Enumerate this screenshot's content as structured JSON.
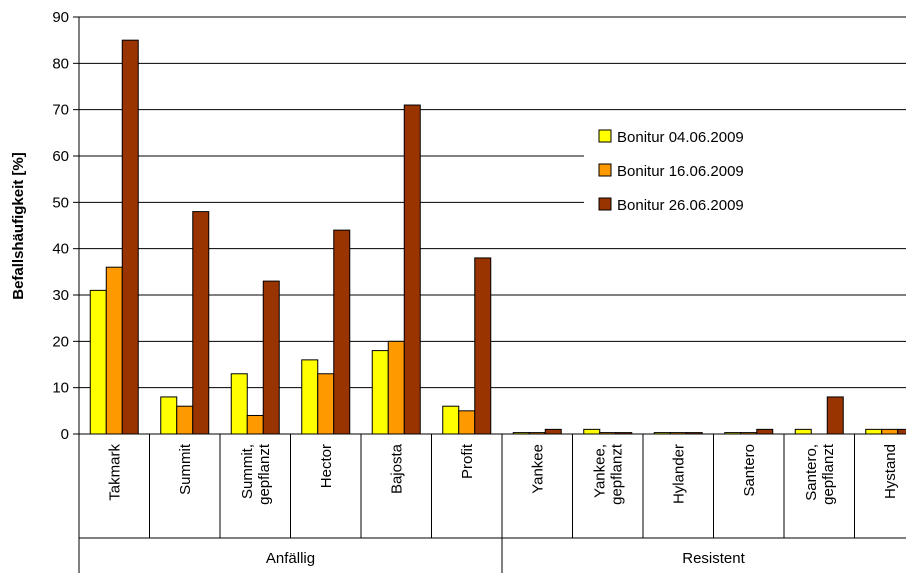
{
  "chart_data": {
    "type": "bar",
    "ylabel": "Befallshäufigkeit [%]",
    "ylim": [
      0,
      90
    ],
    "ytick_step": 10,
    "grid": true,
    "legend_position": "right",
    "categories": [
      [
        "Takmark"
      ],
      [
        "Summit"
      ],
      [
        "Summit,",
        "gepflanzt"
      ],
      [
        "Hector"
      ],
      [
        "Bajosta"
      ],
      [
        "Profit"
      ],
      [
        "Yankee"
      ],
      [
        "Yankee,",
        "gepflanzt"
      ],
      [
        "Hylander"
      ],
      [
        "Santero"
      ],
      [
        "Santero,",
        "gepflanzt"
      ],
      [
        "Hystand"
      ]
    ],
    "groups": [
      {
        "label": "Anfällig",
        "count": 6
      },
      {
        "label": "Resistent",
        "count": 6
      }
    ],
    "series": [
      {
        "name": "Bonitur 04.06.2009",
        "color": "#ffff00",
        "values": [
          31,
          8,
          13,
          16,
          18,
          6,
          0.3,
          1,
          0.3,
          0.3,
          1,
          1
        ]
      },
      {
        "name": "Bonitur 16.06.2009",
        "color": "#ff9900",
        "values": [
          36,
          6,
          4,
          13,
          20,
          5,
          0.3,
          0.3,
          0.3,
          0.3,
          0,
          1
        ]
      },
      {
        "name": "Bonitur 26.06.2009",
        "color": "#993300",
        "values": [
          85,
          48,
          33,
          44,
          71,
          38,
          1,
          0.3,
          0.3,
          1,
          8,
          1
        ]
      }
    ]
  }
}
